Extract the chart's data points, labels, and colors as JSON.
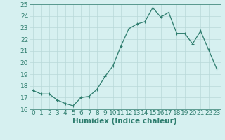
{
  "x": [
    0,
    1,
    2,
    3,
    4,
    5,
    6,
    7,
    8,
    9,
    10,
    11,
    12,
    13,
    14,
    15,
    16,
    17,
    18,
    19,
    20,
    21,
    22,
    23
  ],
  "y": [
    17.6,
    17.3,
    17.3,
    16.8,
    16.5,
    16.3,
    17.0,
    17.1,
    17.7,
    18.8,
    19.7,
    21.4,
    22.9,
    23.3,
    23.5,
    24.7,
    23.9,
    24.3,
    22.5,
    22.5,
    21.6,
    22.7,
    21.1,
    19.5
  ],
  "line_color": "#2e7d6e",
  "marker": "+",
  "bg_color": "#d6f0f0",
  "grid_color": "#b8d8d8",
  "xlabel": "Humidex (Indice chaleur)",
  "ylim": [
    16,
    25
  ],
  "xlim": [
    -0.5,
    23.5
  ],
  "yticks": [
    16,
    17,
    18,
    19,
    20,
    21,
    22,
    23,
    24,
    25
  ],
  "xticks": [
    0,
    1,
    2,
    3,
    4,
    5,
    6,
    7,
    8,
    9,
    10,
    11,
    12,
    13,
    14,
    15,
    16,
    17,
    18,
    19,
    20,
    21,
    22,
    23
  ],
  "tick_fontsize": 6.5,
  "xlabel_fontsize": 7.5
}
